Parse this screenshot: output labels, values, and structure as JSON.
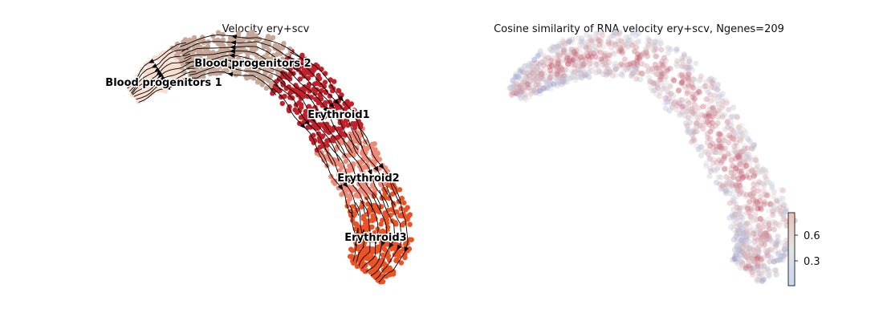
{
  "chart_data": [
    {
      "type": "scatter",
      "subtype": "umap-velocity-stream",
      "title": "Velocity ery+scv",
      "axes": "off",
      "streamlines": true,
      "clusters": [
        {
          "name": "Blood progenitors 1",
          "color": "#f8ddd0"
        },
        {
          "name": "Blood progenitors 2",
          "color": "#c7a898"
        },
        {
          "name": "Erythroid1",
          "color": "#c2202a"
        },
        {
          "name": "Erythroid2",
          "color": "#f08a78"
        },
        {
          "name": "Erythroid3",
          "color": "#ec5224"
        }
      ]
    },
    {
      "type": "scatter",
      "subtype": "umap-continuous-color",
      "title": "Cosine similarity of RNA velocity ery+scv, Ngenes=209",
      "axes": "off",
      "colormap": "coolwarm",
      "colorbar": {
        "ticks": [
          0.3,
          0.6
        ],
        "tick_labels": [
          "0.3",
          "0.6"
        ],
        "range": [
          0.0,
          0.85
        ]
      }
    }
  ],
  "colors": {
    "low": "#3b4cc0",
    "mid": "#dddddd",
    "high": "#b40426",
    "arrow": "#000000"
  }
}
